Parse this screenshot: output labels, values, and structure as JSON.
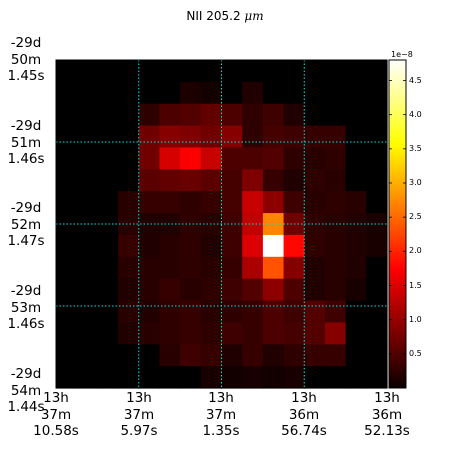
{
  "chart_data": {
    "type": "heatmap",
    "title_prefix": "NII 205.2 ",
    "title_unit": "μm",
    "colormap": "hot",
    "vmin": 0,
    "vmax": 4.8e-08,
    "grid": true,
    "grid_color": "#00e5e5",
    "colorbar": {
      "multiplier": "1e−8",
      "ticks": [
        "0.5",
        "1.0",
        "1.5",
        "2.0",
        "2.5",
        "3.0",
        "3.5",
        "4.0",
        "4.5"
      ],
      "tick_values": [
        0.5,
        1.0,
        1.5,
        2.0,
        2.5,
        3.0,
        3.5,
        4.0,
        4.5
      ]
    },
    "y_ticks": [
      [
        "-29d",
        "50m",
        "1.45s"
      ],
      [
        "-29d",
        "51m",
        "1.46s"
      ],
      [
        "-29d",
        "52m",
        "1.47s"
      ],
      [
        "-29d",
        "53m",
        "1.46s"
      ],
      [
        "-29d",
        "54m",
        "1.44s"
      ]
    ],
    "x_ticks": [
      [
        "13h",
        "37m",
        "10.58s"
      ],
      [
        "13h",
        "37m",
        "5.97s"
      ],
      [
        "13h",
        "37m",
        "1.35s"
      ],
      [
        "13h",
        "36m",
        "56.74s"
      ],
      [
        "13h",
        "36m",
        "52.13s"
      ]
    ],
    "rows": 15,
    "cols": 16,
    "values_1e8": [
      [
        0,
        0,
        0,
        0,
        0,
        0,
        0,
        0,
        0,
        0,
        0,
        0,
        0,
        0,
        0,
        0
      ],
      [
        0,
        0,
        0,
        0,
        0,
        0,
        0.12,
        0.06,
        0,
        0.15,
        0,
        0,
        0,
        0,
        0,
        0
      ],
      [
        0,
        0,
        0,
        0,
        0.25,
        0.45,
        0.5,
        0.6,
        0.45,
        0.25,
        0.35,
        0.15,
        0,
        0,
        0,
        0
      ],
      [
        0,
        0,
        0,
        0,
        0.7,
        0.85,
        0.8,
        0.7,
        0.85,
        0.25,
        0.4,
        0.35,
        0.3,
        0.3,
        0,
        0
      ],
      [
        0,
        0,
        0,
        0,
        0.7,
        1.4,
        1.65,
        1.3,
        0.45,
        0.45,
        0.5,
        0.25,
        0.2,
        0.25,
        0,
        0
      ],
      [
        0,
        0,
        0,
        0,
        0.55,
        0.6,
        0.65,
        0.55,
        0.4,
        0.8,
        0.3,
        0.15,
        0.25,
        0.2,
        0,
        0
      ],
      [
        0,
        0,
        0,
        0.2,
        0.3,
        0.3,
        0.25,
        0.3,
        0.4,
        1.3,
        0.9,
        0.35,
        0.2,
        0.25,
        0.2,
        0
      ],
      [
        0,
        0,
        0,
        0.2,
        0.15,
        0.15,
        0.25,
        0.2,
        0.35,
        1.25,
        2.7,
        0.7,
        0.25,
        0.2,
        0.15,
        0.1
      ],
      [
        0,
        0,
        0,
        0.3,
        0.15,
        0.2,
        0.25,
        0.15,
        0.35,
        1.45,
        4.8,
        1.8,
        0.25,
        0.2,
        0.15,
        0.1
      ],
      [
        0,
        0,
        0,
        0.2,
        0.2,
        0.2,
        0.25,
        0.2,
        0.3,
        1.1,
        2.35,
        0.85,
        0.15,
        0.2,
        0.15,
        0
      ],
      [
        0,
        0,
        0,
        0.15,
        0.2,
        0.3,
        0.2,
        0.25,
        0.35,
        0.5,
        0.9,
        0.45,
        0.15,
        0.2,
        0.1,
        0
      ],
      [
        0,
        0,
        0,
        0.2,
        0.15,
        0.25,
        0.3,
        0.2,
        0.25,
        0.3,
        0.45,
        0.35,
        0.5,
        0.35,
        0,
        0
      ],
      [
        0,
        0,
        0,
        0.15,
        0.2,
        0.25,
        0.3,
        0.25,
        0.35,
        0.3,
        0.45,
        0.4,
        0.5,
        0.85,
        0,
        0
      ],
      [
        0,
        0,
        0,
        0,
        0,
        0.2,
        0.35,
        0.3,
        0.15,
        0.3,
        0.15,
        0.25,
        0.3,
        0.3,
        0,
        0
      ],
      [
        0,
        0,
        0,
        0,
        0,
        0,
        0,
        0.1,
        0.05,
        0.1,
        0.05,
        0.1,
        0,
        0,
        0,
        0
      ]
    ]
  }
}
